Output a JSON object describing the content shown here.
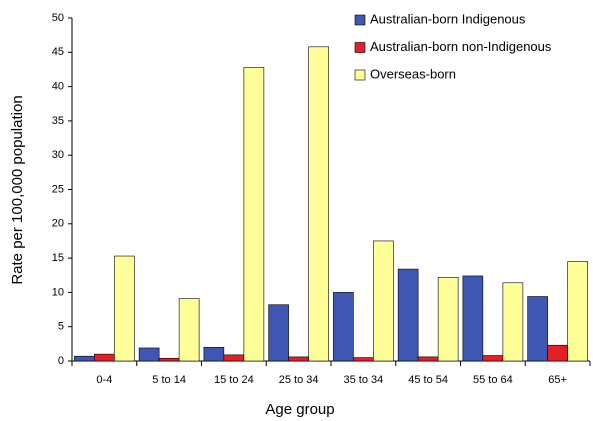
{
  "chart_data": {
    "type": "bar",
    "x_label": "Age group",
    "y_label": "Rate per 100,000 population",
    "categories": [
      "0-4",
      "5 to 14",
      "15 to 24",
      "25 to 34",
      "35 to 34",
      "45 to 54",
      "55 to 64",
      "65+"
    ],
    "series": [
      {
        "name": "Australian-born Indigenous",
        "color": "#3f56b3",
        "values": [
          0.7,
          1.9,
          2.0,
          8.2,
          10.0,
          13.4,
          12.4,
          9.4
        ]
      },
      {
        "name": "Australian-born non-Indigenous",
        "color": "#e41f26",
        "values": [
          1.0,
          0.4,
          0.9,
          0.6,
          0.5,
          0.6,
          0.8,
          2.3
        ]
      },
      {
        "name": "Overseas-born",
        "color": "#ffff99",
        "values": [
          15.3,
          9.1,
          42.8,
          45.8,
          17.5,
          12.2,
          11.4,
          14.5
        ]
      }
    ],
    "ylim": [
      0,
      50
    ],
    "yticks": [
      0,
      5,
      10,
      15,
      20,
      25,
      30,
      35,
      40,
      45,
      50
    ],
    "grid": false,
    "legend": "top-right"
  }
}
